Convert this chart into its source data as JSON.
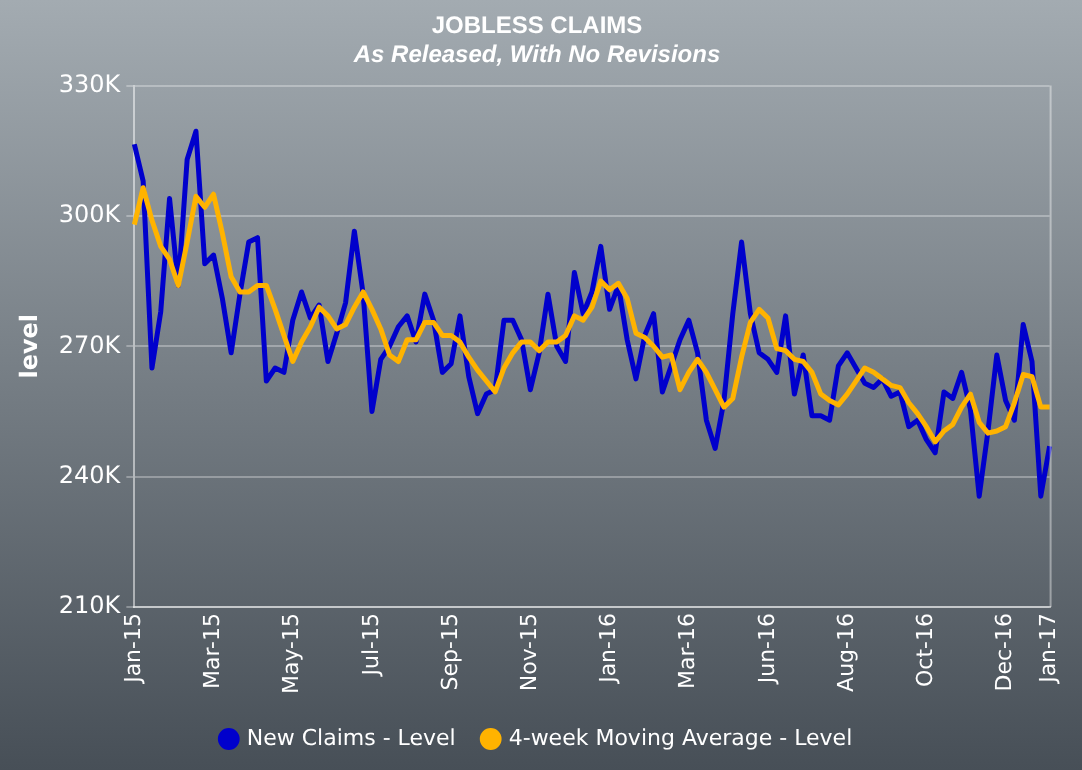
{
  "chart_data": {
    "type": "line",
    "title": "JOBLESS CLAIMS",
    "subtitle": "As Released, With No Revisions",
    "ylabel": "level",
    "categories": [
      "Jan-15",
      null,
      null,
      null,
      null,
      null,
      null,
      null,
      null,
      "Mar-15",
      null,
      null,
      null,
      null,
      null,
      null,
      null,
      null,
      "May-15",
      null,
      null,
      null,
      null,
      null,
      null,
      null,
      null,
      "Jul-15",
      null,
      null,
      null,
      null,
      null,
      null,
      null,
      null,
      "Sep-15",
      null,
      null,
      null,
      null,
      null,
      null,
      null,
      null,
      "Nov-15",
      null,
      null,
      null,
      null,
      null,
      null,
      null,
      null,
      "Jan-16",
      null,
      null,
      null,
      null,
      null,
      null,
      null,
      null,
      "Mar-16",
      null,
      null,
      null,
      null,
      null,
      null,
      null,
      null,
      "Jun-16",
      null,
      null,
      null,
      null,
      null,
      null,
      null,
      null,
      "Aug-16",
      null,
      null,
      null,
      null,
      null,
      null,
      null,
      null,
      "Oct-16",
      null,
      null,
      null,
      null,
      null,
      null,
      null,
      null,
      "Dec-16",
      null,
      null,
      null,
      null,
      "Jan-17"
    ],
    "series": [
      {
        "name": "New Claims - Level",
        "color": "#0000cc",
        "values": [
          316.5,
          308,
          265,
          278,
          304,
          284,
          313,
          319.5,
          289,
          291,
          281,
          268.5,
          282,
          294,
          295,
          262,
          265,
          264,
          276,
          282.5,
          276.5,
          279.5,
          266.5,
          273,
          280,
          296.5,
          282,
          255,
          267,
          270,
          274.5,
          277,
          271,
          282,
          276,
          264,
          266,
          277,
          263,
          254.5,
          259,
          260,
          276,
          276,
          271.5,
          260,
          268.5,
          282,
          270,
          266.5,
          287,
          277.5,
          282.5,
          293,
          278.5,
          284,
          271.5,
          262.5,
          272.5,
          277.5,
          259.5,
          265.5,
          271.5,
          276,
          268.5,
          253,
          246.5,
          257.5,
          277.5,
          294,
          277.5,
          268.5,
          267,
          264,
          277,
          259,
          268,
          254,
          254,
          253,
          265.5,
          268.5,
          265,
          261.5,
          260.5,
          262.5,
          258.5,
          259.5,
          251.5,
          253,
          248.5,
          245.5,
          259.5,
          258,
          264,
          255.5,
          235.5,
          250.5,
          268,
          257.5,
          253,
          275,
          266.5,
          235.5,
          247
        ]
      },
      {
        "name": "4-week Moving Average - Level",
        "color": "#ffb300",
        "values": [
          298,
          306.5,
          299,
          293,
          290,
          284,
          294,
          304.5,
          302,
          305,
          296,
          286,
          282.5,
          282.5,
          284,
          284,
          278.5,
          272.5,
          266.5,
          271,
          274.5,
          279,
          277,
          274,
          275,
          279,
          282.5,
          278.5,
          274,
          268,
          266.5,
          271.5,
          271.5,
          275.5,
          275.5,
          272.5,
          272.5,
          271,
          267.5,
          264.5,
          262,
          259.5,
          265,
          268.5,
          271,
          271,
          269,
          271,
          271,
          272.5,
          277,
          276,
          279,
          285,
          283,
          284.5,
          281,
          273,
          272,
          270,
          267.5,
          268,
          260,
          264,
          267,
          264,
          260,
          256,
          258,
          267.5,
          275.5,
          278.5,
          276.5,
          269.5,
          269,
          267,
          266.5,
          264,
          259,
          257.5,
          256.5,
          259,
          262,
          265,
          264,
          262.5,
          261,
          260.5,
          257,
          254.5,
          251.5,
          248,
          250.5,
          252,
          256,
          259,
          252.5,
          250,
          250.5,
          251.5,
          257,
          263.5,
          263,
          256,
          256
        ]
      }
    ],
    "ylim": [
      210,
      330
    ],
    "yticks": [
      {
        "value": 210,
        "label": "210K"
      },
      {
        "value": 240,
        "label": "240K"
      },
      {
        "value": 270,
        "label": "270K"
      },
      {
        "value": 300,
        "label": "300K"
      },
      {
        "value": 330,
        "label": "330K"
      }
    ],
    "grid": "y",
    "legend": "bottom",
    "line_style": "solid"
  }
}
